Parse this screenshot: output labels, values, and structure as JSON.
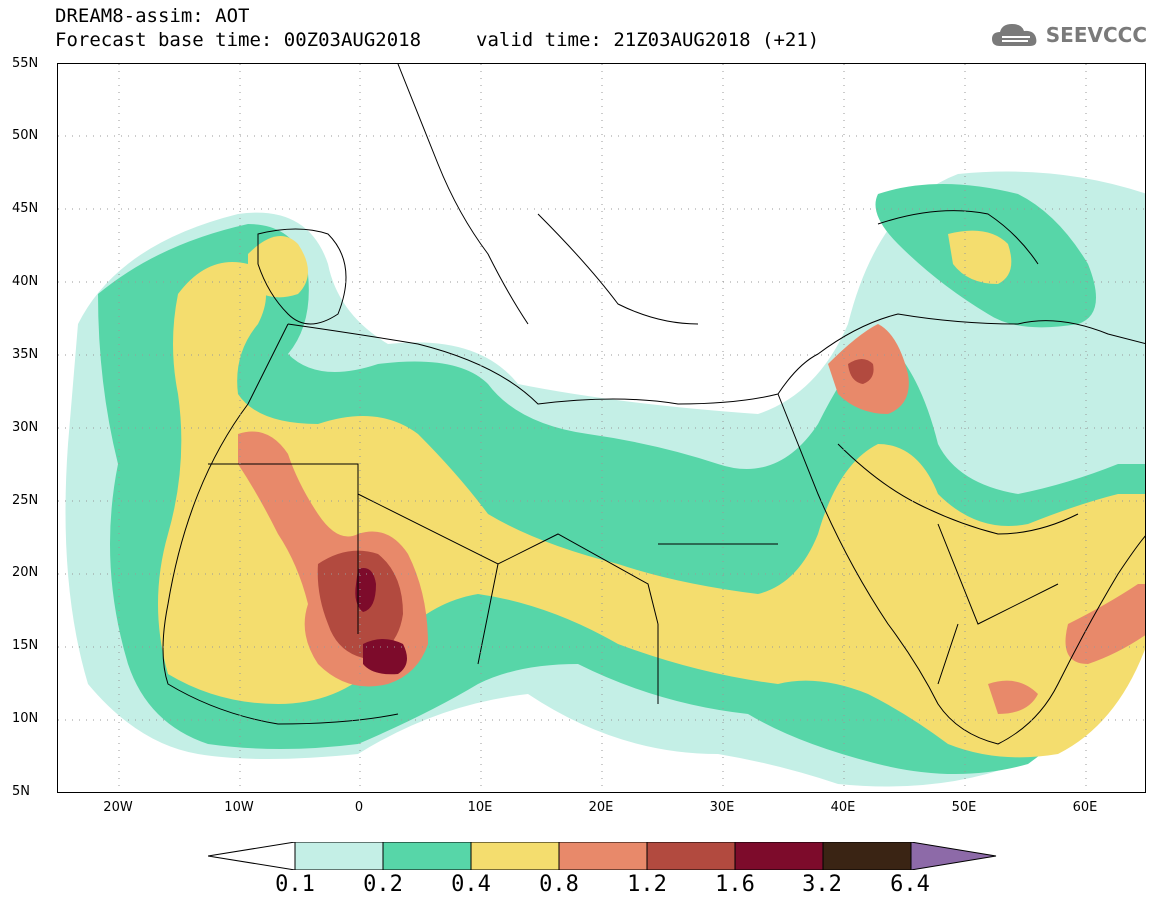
{
  "title": {
    "line1": "DREAM8-assim: AOT",
    "base_time": "Forecast base time: 00Z03AUG2018",
    "valid_time": "valid time: 21Z03AUG2018 (+21)"
  },
  "logo": {
    "text": "SEEVCCC",
    "icon": "cloud-icon"
  },
  "axes": {
    "lat_labels": [
      "55N",
      "50N",
      "45N",
      "40N",
      "35N",
      "30N",
      "25N",
      "20N",
      "15N",
      "10N",
      "5N"
    ],
    "lon_labels": [
      "20W",
      "10W",
      "0",
      "10E",
      "20E",
      "30E",
      "40E",
      "50E",
      "60E"
    ]
  },
  "colorbar": {
    "levels": [
      "0.1",
      "0.2",
      "0.4",
      "0.8",
      "1.2",
      "1.6",
      "3.2",
      "6.4"
    ],
    "colors": [
      "#ffffff",
      "#c4efe6",
      "#57d6a8",
      "#f4dd6e",
      "#e8896a",
      "#b24a3f",
      "#7d0b2b",
      "#3a2414",
      "#8d6aa8"
    ]
  }
}
